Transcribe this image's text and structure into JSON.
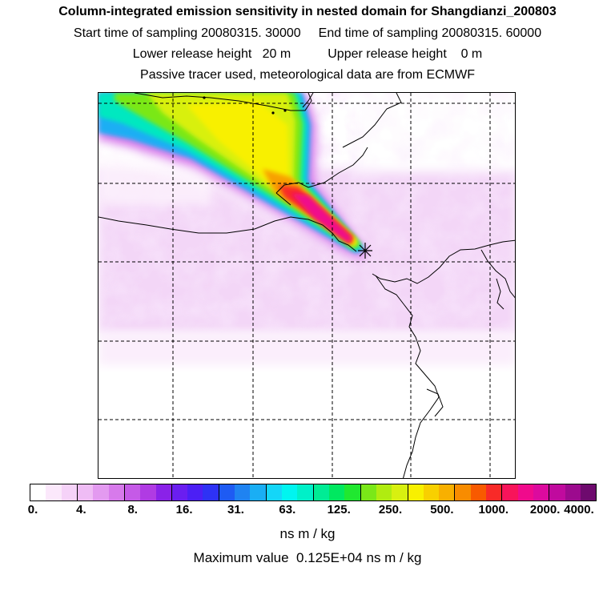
{
  "title": {
    "line1": "Column-integrated emission sensitivity in nested domain for Shangdianzi_200803",
    "start_label": "Start time of sampling",
    "start_value": "20080315. 30000",
    "end_label": "End time of sampling",
    "end_value": "20080315. 60000",
    "lower_label": "Lower release height",
    "lower_value": "20 m",
    "upper_label": "Upper release height",
    "upper_value": "0 m",
    "line4": "Passive tracer used, meteorological data are from ECMWF"
  },
  "map": {
    "release_marker": "star-cross-icon",
    "gridlines": "dashed"
  },
  "colorbar": {
    "colors": [
      "#ffffff",
      "#fbe8fb",
      "#f5d2f8",
      "#efbcf5",
      "#e39af0",
      "#d77aeb",
      "#c55ae7",
      "#b03be3",
      "#8a22e8",
      "#6a1ef0",
      "#4c1ff5",
      "#2e32f5",
      "#1e5bf3",
      "#1f83f1",
      "#1aaef4",
      "#14d6f8",
      "#00f5f0",
      "#00f0c8",
      "#00ec95",
      "#00e860",
      "#20e830",
      "#7ae818",
      "#b0ec10",
      "#d8f010",
      "#f8f000",
      "#f8d000",
      "#f8b000",
      "#f88c00",
      "#f85a00",
      "#f82a28",
      "#f8145a",
      "#f00a8c",
      "#dc0a9e",
      "#c00a9e",
      "#9c0a8e",
      "#6e0a6e"
    ],
    "tick_labels": [
      "0.",
      "4.",
      "8.",
      "16.",
      "31.",
      "63.",
      "125.",
      "250.",
      "500.",
      "1000.",
      "2000.",
      "4000."
    ],
    "units": "ns m / kg",
    "max_label": "Maximum value",
    "max_value": "0.125E+04",
    "max_units": "ns m / kg"
  }
}
